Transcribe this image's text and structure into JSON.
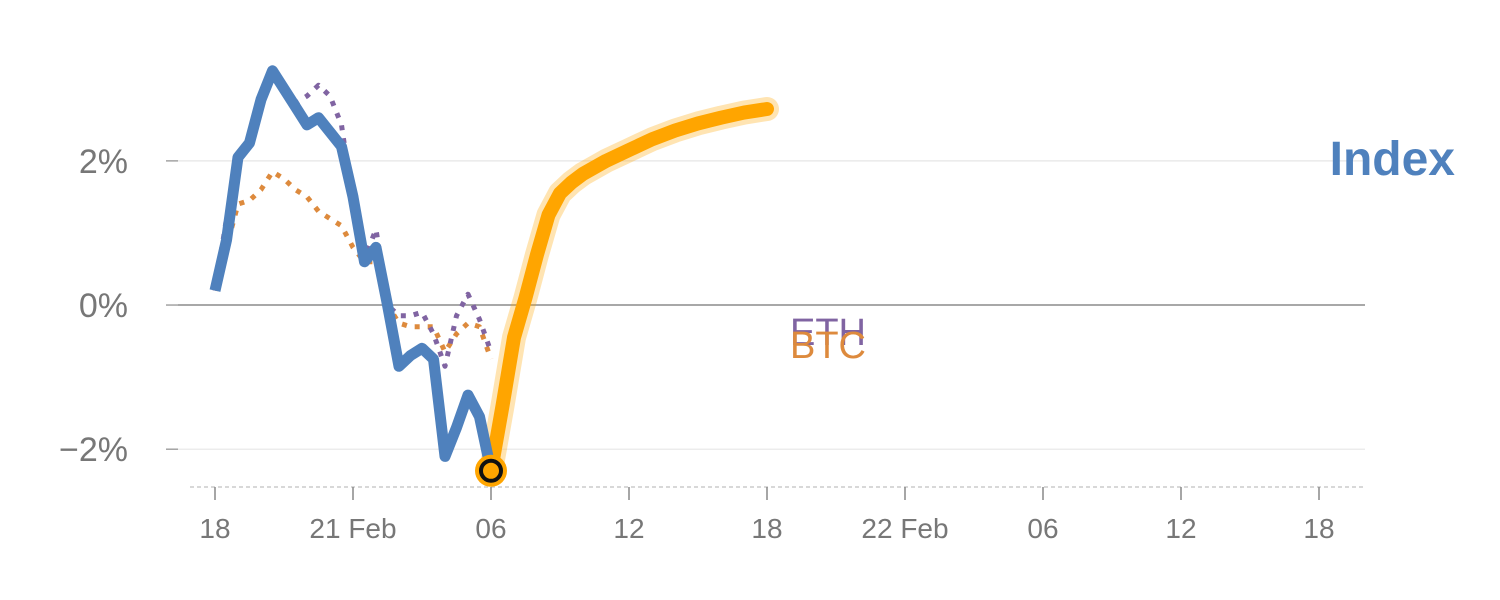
{
  "chart_data": {
    "type": "line",
    "title": "",
    "xlabel": "",
    "ylabel": "",
    "x_ticks": [
      "18",
      "21 Feb",
      "06",
      "12",
      "18",
      "22 Feb",
      "06",
      "12",
      "18"
    ],
    "y_ticks": [
      {
        "value": 2,
        "label": "2%"
      },
      {
        "value": 0,
        "label": "0%"
      },
      {
        "value": -2,
        "label": "−2%"
      }
    ],
    "ylim": [
      -2.4,
      3.4
    ],
    "grid": true,
    "legend": "inline labels at line ends",
    "colors": {
      "index": "#4f81bd",
      "btc": "#dd8a3d",
      "eth": "#8064a2",
      "forecast": "#ffa500",
      "grid": "#e6e6e6",
      "zero_line": "#8c8c8c",
      "tick_text": "#777777"
    },
    "series": [
      {
        "name": "Index",
        "style": "solid",
        "points": [
          [
            0,
            0.2
          ],
          [
            0.5,
            0.9
          ],
          [
            1,
            2.05
          ],
          [
            1.5,
            2.25
          ],
          [
            2,
            2.85
          ],
          [
            2.5,
            3.25
          ],
          [
            3,
            3.0
          ],
          [
            3.5,
            2.75
          ],
          [
            4,
            2.5
          ],
          [
            4.5,
            2.6
          ],
          [
            5,
            2.4
          ],
          [
            5.5,
            2.2
          ],
          [
            6,
            1.5
          ],
          [
            6.5,
            0.6
          ],
          [
            7,
            0.8
          ],
          [
            7.5,
            0.0
          ],
          [
            8,
            -0.85
          ],
          [
            8.5,
            -0.7
          ],
          [
            9,
            -0.6
          ],
          [
            9.5,
            -0.75
          ],
          [
            10,
            -2.1
          ],
          [
            10.5,
            -1.7
          ],
          [
            11,
            -1.25
          ],
          [
            11.5,
            -1.55
          ],
          [
            12,
            -2.3
          ]
        ]
      },
      {
        "name": "BTC",
        "style": "dotted",
        "points": [
          [
            0,
            0.2
          ],
          [
            0.5,
            0.8
          ],
          [
            1,
            1.4
          ],
          [
            1.5,
            1.45
          ],
          [
            2,
            1.6
          ],
          [
            2.5,
            1.85
          ],
          [
            3,
            1.75
          ],
          [
            3.5,
            1.6
          ],
          [
            4,
            1.5
          ],
          [
            4.5,
            1.3
          ],
          [
            5,
            1.2
          ],
          [
            5.5,
            1.1
          ],
          [
            6,
            0.8
          ],
          [
            6.5,
            0.6
          ],
          [
            7,
            0.6
          ],
          [
            7.5,
            0.0
          ],
          [
            8,
            -0.25
          ],
          [
            8.5,
            -0.3
          ],
          [
            9,
            -0.3
          ],
          [
            9.5,
            -0.3
          ],
          [
            10,
            -0.65
          ],
          [
            10.5,
            -0.4
          ],
          [
            11,
            -0.25
          ],
          [
            11.5,
            -0.3
          ],
          [
            12,
            -0.75
          ]
        ]
      },
      {
        "name": "ETH",
        "style": "dotted",
        "points": [
          [
            0,
            0.2
          ],
          [
            0.5,
            1.2
          ],
          [
            1,
            1.95
          ],
          [
            1.5,
            2.3
          ],
          [
            2,
            2.75
          ],
          [
            2.5,
            3.3
          ],
          [
            3,
            3.05
          ],
          [
            3.5,
            2.8
          ],
          [
            4,
            2.9
          ],
          [
            4.5,
            3.05
          ],
          [
            5,
            2.9
          ],
          [
            5.5,
            2.5
          ],
          [
            6,
            1.4
          ],
          [
            6.5,
            0.65
          ],
          [
            7,
            1.05
          ],
          [
            7.5,
            0.0
          ],
          [
            8,
            -0.15
          ],
          [
            8.5,
            -0.15
          ],
          [
            9,
            -0.1
          ],
          [
            9.5,
            -0.4
          ],
          [
            10,
            -0.85
          ],
          [
            10.5,
            -0.15
          ],
          [
            11,
            0.15
          ],
          [
            11.5,
            -0.2
          ],
          [
            12,
            -0.65
          ]
        ]
      }
    ],
    "forecast": {
      "style": "thick",
      "points": [
        [
          12,
          -2.3
        ],
        [
          12.5,
          -1.4
        ],
        [
          13,
          -0.45
        ],
        [
          13.5,
          0.1
        ],
        [
          14,
          0.7
        ],
        [
          14.5,
          1.25
        ],
        [
          15,
          1.55
        ],
        [
          15.5,
          1.7
        ],
        [
          16,
          1.82
        ],
        [
          17,
          2.0
        ],
        [
          18,
          2.15
        ],
        [
          19,
          2.3
        ],
        [
          20,
          2.42
        ],
        [
          21,
          2.52
        ],
        [
          22,
          2.6
        ],
        [
          23,
          2.67
        ],
        [
          24,
          2.72
        ]
      ]
    },
    "annotations": [
      {
        "text": "Index",
        "series": "Index"
      },
      {
        "text": "ETH",
        "series": "ETH"
      },
      {
        "text": "BTC",
        "series": "BTC"
      }
    ]
  }
}
